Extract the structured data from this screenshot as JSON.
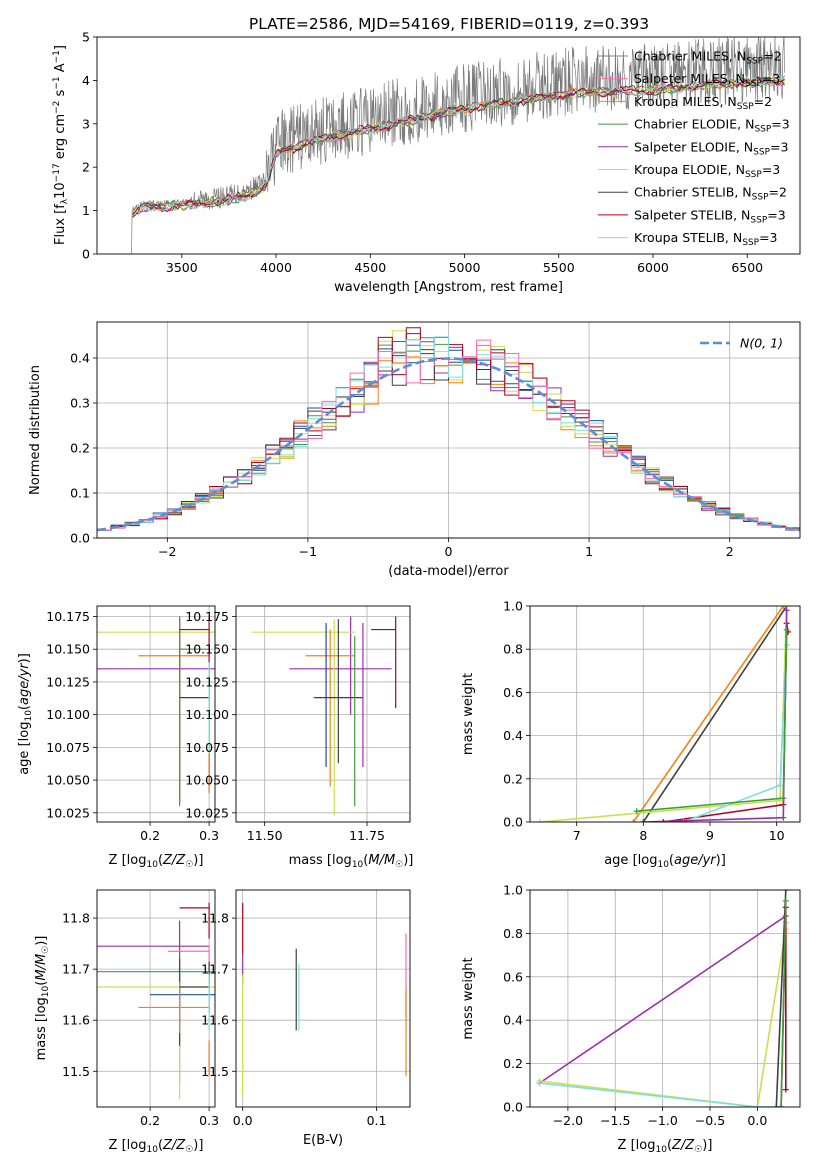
{
  "title": "PLATE=2586, MJD=54169, FIBERID=0119, z=0.393",
  "colors": {
    "Chabrier MILES": "#808080",
    "Salpeter MILES": "#ff69b4",
    "Kroupa MILES": "#ff7f0e",
    "Chabrier ELODIE": "#3d9e3d",
    "Salpeter ELODIE": "#9b2fae",
    "Kroupa ELODIE": "#c8e04a",
    "Chabrier STELIB": "#404040",
    "Salpeter STELIB": "#b2001a",
    "Kroupa STELIB": "#7fdede",
    "Chabrier MILES 2": "#1f4e9e",
    "Kroupa MILES 2": "#e8742a",
    "normal": "#5b8ed6",
    "data": "#7a7a7a"
  },
  "chart_data": [
    {
      "id": "spectrum",
      "type": "line",
      "xlabel": "wavelength [Angstrom, rest frame]",
      "ylabel": "Flux [f_λ 10^-17 erg cm^-2 s^-1 A^-1]",
      "xlim": [
        3050,
        6780
      ],
      "ylim": [
        0,
        5
      ],
      "xticks": [
        3500,
        4000,
        4500,
        5000,
        5500,
        6000,
        6500
      ],
      "yticks": [
        0,
        1,
        2,
        3,
        4,
        5
      ],
      "grid": false,
      "legend_position": "right",
      "legend": [
        {
          "label": "Chabrier MILES, N",
          "sub": "SSP",
          "tail": "=2",
          "color_key": "Chabrier MILES"
        },
        {
          "label": "Salpeter MILES, N",
          "sub": "SSP",
          "tail": "=3",
          "color_key": "Salpeter MILES"
        },
        {
          "label": "Kroupa MILES, N",
          "sub": "SSP",
          "tail": "=2",
          "color_key": "Kroupa MILES"
        },
        {
          "label": "Chabrier ELODIE, N",
          "sub": "SSP",
          "tail": "=3",
          "color_key": "Chabrier ELODIE"
        },
        {
          "label": "Salpeter ELODIE, N",
          "sub": "SSP",
          "tail": "=3",
          "color_key": "Salpeter ELODIE"
        },
        {
          "label": "Kroupa ELODIE, N",
          "sub": "SSP",
          "tail": "=3",
          "color_key": "Kroupa ELODIE"
        },
        {
          "label": "Chabrier STELIB, N",
          "sub": "SSP",
          "tail": "=2",
          "color_key": "Chabrier STELIB"
        },
        {
          "label": "Salpeter STELIB, N",
          "sub": "SSP",
          "tail": "=3",
          "color_key": "Salpeter STELIB"
        },
        {
          "label": "Kroupa STELIB, N",
          "sub": "SSP",
          "tail": "=3",
          "color_key": "Kroupa STELIB"
        }
      ],
      "data_range": [
        3230,
        6700
      ],
      "continuum": [
        [
          3230,
          1.0
        ],
        [
          3300,
          1.15
        ],
        [
          3500,
          1.2
        ],
        [
          3700,
          1.3
        ],
        [
          3850,
          1.45
        ],
        [
          3950,
          1.7
        ],
        [
          4000,
          2.5
        ],
        [
          4200,
          2.8
        ],
        [
          4500,
          3.1
        ],
        [
          4800,
          3.4
        ],
        [
          5000,
          3.6
        ],
        [
          5300,
          3.8
        ],
        [
          5600,
          4.0
        ],
        [
          6000,
          4.05
        ],
        [
          6300,
          4.2
        ],
        [
          6700,
          4.3
        ]
      ]
    },
    {
      "id": "residuals",
      "type": "line",
      "xlabel": "(data-model)/error",
      "ylabel": "Normed distribution",
      "xlim": [
        -2.5,
        2.5
      ],
      "ylim": [
        0,
        0.48
      ],
      "xticks": [
        -2,
        -1,
        0,
        1,
        2
      ],
      "yticks": [
        0.0,
        0.1,
        0.2,
        0.3,
        0.4
      ],
      "grid": true,
      "legend_position": "top-right",
      "normal_label": "N(0, 1)",
      "bin_width": 0.1
    },
    {
      "id": "age_vs_Z",
      "type": "scatter",
      "xlabel": "Z [log10(Z/Z☉)]",
      "ylabel": "age [log10(age/yr)]",
      "xlim": [
        0.11,
        0.31
      ],
      "ylim": [
        10.018,
        10.183
      ],
      "xticks": [
        0.2,
        0.3
      ],
      "yticks": [
        10.025,
        10.05,
        10.075,
        10.1,
        10.125,
        10.15,
        10.175
      ],
      "grid": true,
      "points": [
        {
          "x": 0.25,
          "y": 10.135,
          "xe": [
            0.14,
            0.12
          ],
          "ye": [
            0.035,
            0.04
          ],
          "c": "Salpeter ELODIE"
        },
        {
          "x": 0.25,
          "y": 10.163,
          "xe": [
            0.14,
            0.06
          ],
          "ye": [
            0.13,
            0.01
          ],
          "c": "Kroupa ELODIE"
        },
        {
          "x": 0.25,
          "y": 10.145,
          "xe": [
            0.07,
            0.05
          ],
          "ye": [
            0.1,
            0.02
          ],
          "c": "Kroupa MILES"
        },
        {
          "x": 0.25,
          "y": 10.113,
          "xe": [
            0.0,
            0.05
          ],
          "ye": [
            0.08,
            0.06
          ],
          "c": "Chabrier STELIB"
        },
        {
          "x": 0.3,
          "y": 10.165,
          "xe": [
            0.05,
            0.0
          ],
          "ye": [
            0.12,
            0.01
          ],
          "c": "Salpeter STELIB"
        },
        {
          "x": 0.25,
          "y": 10.15,
          "xe": [
            0.0,
            0.05
          ],
          "ye": [
            0.12,
            0.025
          ],
          "c": "Chabrier ELODIE"
        },
        {
          "x": 0.3,
          "y": 10.08,
          "xe": [
            0.0,
            0.0
          ],
          "ye": [
            0.01,
            0.06
          ],
          "c": "Kroupa STELIB"
        },
        {
          "x": 0.3,
          "y": 10.06,
          "xe": [
            0.0,
            0.0
          ],
          "ye": [
            0.02,
            0.01
          ],
          "c": "Kroupa MILES 2"
        }
      ]
    },
    {
      "id": "age_vs_mass",
      "type": "scatter",
      "xlabel": "mass [log10(M/M☉)]",
      "ylabel": "",
      "xlim": [
        11.43,
        11.855
      ],
      "ylim": [
        10.018,
        10.183
      ],
      "xticks": [
        11.5,
        11.75
      ],
      "yticks": [
        10.025,
        10.05,
        10.075,
        10.1,
        10.125,
        10.15,
        10.175
      ],
      "grid": true,
      "points": [
        {
          "x": 11.71,
          "y": 10.135,
          "xe": [
            0.15,
            0.1
          ],
          "ye": [
            0.035,
            0.04
          ],
          "c": "Salpeter ELODIE"
        },
        {
          "x": 11.67,
          "y": 10.163,
          "xe": [
            0.2,
            0.05
          ],
          "ye": [
            0.14,
            0.01
          ],
          "c": "Kroupa ELODIE"
        },
        {
          "x": 11.66,
          "y": 10.145,
          "xe": [
            0.06,
            0.06
          ],
          "ye": [
            0.1,
            0.02
          ],
          "c": "Kroupa MILES"
        },
        {
          "x": 11.68,
          "y": 10.113,
          "xe": [
            0.06,
            0.06
          ],
          "ye": [
            0.05,
            0.06
          ],
          "c": "Chabrier STELIB"
        },
        {
          "x": 11.82,
          "y": 10.165,
          "xe": [
            0.06,
            0.0
          ],
          "ye": [
            0.06,
            0.01
          ],
          "c": "Salpeter STELIB"
        },
        {
          "x": 11.72,
          "y": 10.15,
          "xe": [
            0.0,
            0.0
          ],
          "ye": [
            0.12,
            0.01
          ],
          "c": "Chabrier ELODIE"
        },
        {
          "x": 11.65,
          "y": 10.12,
          "xe": [
            0.0,
            0.0
          ],
          "ye": [
            0.06,
            0.05
          ],
          "c": "Chabrier MILES 2"
        },
        {
          "x": 11.74,
          "y": 10.13,
          "xe": [
            0.0,
            0.0
          ],
          "ye": [
            0.07,
            0.04
          ],
          "c": "Salpeter ELODIE"
        }
      ]
    },
    {
      "id": "mass_weight_vs_age",
      "type": "line",
      "xlabel": "age [log10(age/yr)]",
      "ylabel": "mass weight",
      "xlim": [
        6.3,
        10.35
      ],
      "ylim": [
        0,
        1.0
      ],
      "xticks": [
        7,
        8,
        9,
        10
      ],
      "yticks": [
        0.0,
        0.2,
        0.4,
        0.6,
        0.8,
        1.0
      ],
      "grid": true,
      "series": [
        {
          "c": "Chabrier STELIB",
          "pts": [
            [
              8.0,
              0.0
            ],
            [
              10.15,
              1.0
            ]
          ]
        },
        {
          "c": "Kroupa MILES",
          "pts": [
            [
              7.85,
              0.0
            ],
            [
              10.1,
              1.0
            ]
          ]
        },
        {
          "c": "Salpeter STELIB",
          "pts": [
            [
              8.3,
              0.0
            ],
            [
              10.1,
              0.08
            ],
            [
              10.15,
              0.92
            ],
            [
              10.17,
              0.88
            ]
          ]
        },
        {
          "c": "Kroupa ELODIE",
          "pts": [
            [
              6.45,
              0.0
            ],
            [
              10.05,
              0.1
            ],
            [
              10.15,
              1.0
            ]
          ]
        },
        {
          "c": "Kroupa STELIB",
          "pts": [
            [
              8.6,
              0.0
            ],
            [
              10.05,
              0.17
            ],
            [
              10.15,
              0.82
            ]
          ]
        },
        {
          "c": "Salpeter ELODIE",
          "pts": [
            [
              8.0,
              0.0
            ],
            [
              10.1,
              0.02
            ],
            [
              10.15,
              0.98
            ]
          ]
        },
        {
          "c": "Chabrier ELODIE",
          "pts": [
            [
              7.9,
              0.05
            ],
            [
              10.1,
              0.11
            ],
            [
              10.15,
              0.89
            ]
          ]
        }
      ]
    },
    {
      "id": "mass_vs_Z",
      "type": "scatter",
      "xlabel": "Z [log10(Z/Z☉)]",
      "ylabel": "mass [log10(M/M☉)]",
      "xlim": [
        0.11,
        0.31
      ],
      "ylim": [
        11.43,
        11.855
      ],
      "xticks": [
        0.2,
        0.3
      ],
      "yticks": [
        11.5,
        11.6,
        11.7,
        11.8
      ],
      "grid": true,
      "points": [
        {
          "x": 0.25,
          "y": 11.745,
          "xe": [
            0.14,
            0.05
          ],
          "ye": [
            0.19,
            0.05
          ],
          "c": "Salpeter ELODIE"
        },
        {
          "x": 0.25,
          "y": 11.695,
          "xe": [
            0.14,
            0.06
          ],
          "ye": [
            0.22,
            0.02
          ],
          "c": "Chabrier ELODIE"
        },
        {
          "x": 0.25,
          "y": 11.665,
          "xe": [
            0.14,
            0.06
          ],
          "ye": [
            0.22,
            0.01
          ],
          "c": "Kroupa ELODIE"
        },
        {
          "x": 0.25,
          "y": 11.65,
          "xe": [
            0.05,
            0.06
          ],
          "ye": [
            0.1,
            0.07
          ],
          "c": "Chabrier MILES 2"
        },
        {
          "x": 0.25,
          "y": 11.625,
          "xe": [
            0.07,
            0.05
          ],
          "ye": [
            0.05,
            0.05
          ],
          "c": "Kroupa MILES"
        },
        {
          "x": 0.3,
          "y": 11.82,
          "xe": [
            0.05,
            0.0
          ],
          "ye": [
            0.06,
            0.01
          ],
          "c": "Salpeter STELIB"
        },
        {
          "x": 0.3,
          "y": 11.735,
          "xe": [
            0.07,
            0.0
          ],
          "ye": [
            0.06,
            0.01
          ],
          "c": "Salpeter MILES"
        },
        {
          "x": 0.3,
          "y": 11.665,
          "xe": [
            0.05,
            0.0
          ],
          "ye": [
            0.05,
            0.05
          ],
          "c": "Chabrier STELIB"
        },
        {
          "x": 0.3,
          "y": 11.6,
          "xe": [
            0.0,
            0.0
          ],
          "ye": [
            0.02,
            0.09
          ],
          "c": "Kroupa STELIB"
        },
        {
          "x": 0.3,
          "y": 11.52,
          "xe": [
            0.0,
            0.0
          ],
          "ye": [
            0.03,
            0.04
          ],
          "c": "Kroupa MILES 2"
        }
      ]
    },
    {
      "id": "mass_vs_EBV",
      "type": "scatter",
      "xlabel": "E(B-V)",
      "ylabel": "",
      "xlim": [
        -0.005,
        0.125
      ],
      "ylim": [
        11.43,
        11.855
      ],
      "xticks": [
        0.0,
        0.1
      ],
      "yticks": [
        11.5,
        11.6,
        11.7,
        11.8
      ],
      "grid": true,
      "points": [
        {
          "x": 0.0,
          "y": 11.78,
          "xe": [
            0,
            0
          ],
          "ye": [
            0.05,
            0.05
          ],
          "c": "Salpeter STELIB"
        },
        {
          "x": 0.0,
          "y": 11.7,
          "xe": [
            0,
            0
          ],
          "ye": [
            0.03,
            0.03
          ],
          "c": "Salpeter ELODIE"
        },
        {
          "x": 0.0,
          "y": 11.6,
          "xe": [
            0,
            0
          ],
          "ye": [
            0.15,
            0.09
          ],
          "c": "Kroupa ELODIE"
        },
        {
          "x": 0.04,
          "y": 11.66,
          "xe": [
            0,
            0
          ],
          "ye": [
            0.08,
            0.08
          ],
          "c": "Chabrier STELIB"
        },
        {
          "x": 0.042,
          "y": 11.645,
          "xe": [
            0,
            0
          ],
          "ye": [
            0.065,
            0.065
          ],
          "c": "Kroupa STELIB"
        },
        {
          "x": 0.122,
          "y": 11.68,
          "xe": [
            0,
            0
          ],
          "ye": [
            0.08,
            0.09
          ],
          "c": "Salpeter MILES"
        },
        {
          "x": 0.122,
          "y": 11.57,
          "xe": [
            0,
            0
          ],
          "ye": [
            0.08,
            0.09
          ],
          "c": "Kroupa MILES"
        }
      ]
    },
    {
      "id": "mass_weight_vs_Z",
      "type": "line",
      "xlabel": "Z [log10(Z/Z☉)]",
      "ylabel": "mass weight",
      "xlim": [
        -2.4,
        0.45
      ],
      "ylim": [
        0,
        1.0
      ],
      "xticks": [
        -2.0,
        -1.5,
        -1.0,
        -0.5,
        0.0
      ],
      "yticks": [
        0.0,
        0.2,
        0.4,
        0.6,
        0.8,
        1.0
      ],
      "grid": true,
      "series": [
        {
          "c": "Salpeter ELODIE",
          "pts": [
            [
              -2.3,
              0.11
            ],
            [
              0.3,
              0.88
            ]
          ]
        },
        {
          "c": "Kroupa ELODIE",
          "pts": [
            [
              -2.3,
              0.12
            ],
            [
              0.0,
              0.0
            ],
            [
              0.3,
              0.82
            ]
          ]
        },
        {
          "c": "Kroupa STELIB",
          "pts": [
            [
              -2.3,
              0.11
            ],
            [
              0.0,
              0.0
            ],
            [
              0.25,
              0.0
            ],
            [
              0.3,
              0.85
            ]
          ]
        },
        {
          "c": "Chabrier STELIB",
          "pts": [
            [
              0.2,
              0.0
            ],
            [
              0.3,
              1.0
            ]
          ]
        },
        {
          "c": "Salpeter STELIB",
          "pts": [
            [
              0.25,
              0.0
            ],
            [
              0.3,
              0.92
            ],
            [
              0.3,
              0.08
            ]
          ]
        },
        {
          "c": "Chabrier ELODIE",
          "pts": [
            [
              0.25,
              0.0
            ],
            [
              0.3,
              0.95
            ]
          ]
        }
      ]
    }
  ]
}
